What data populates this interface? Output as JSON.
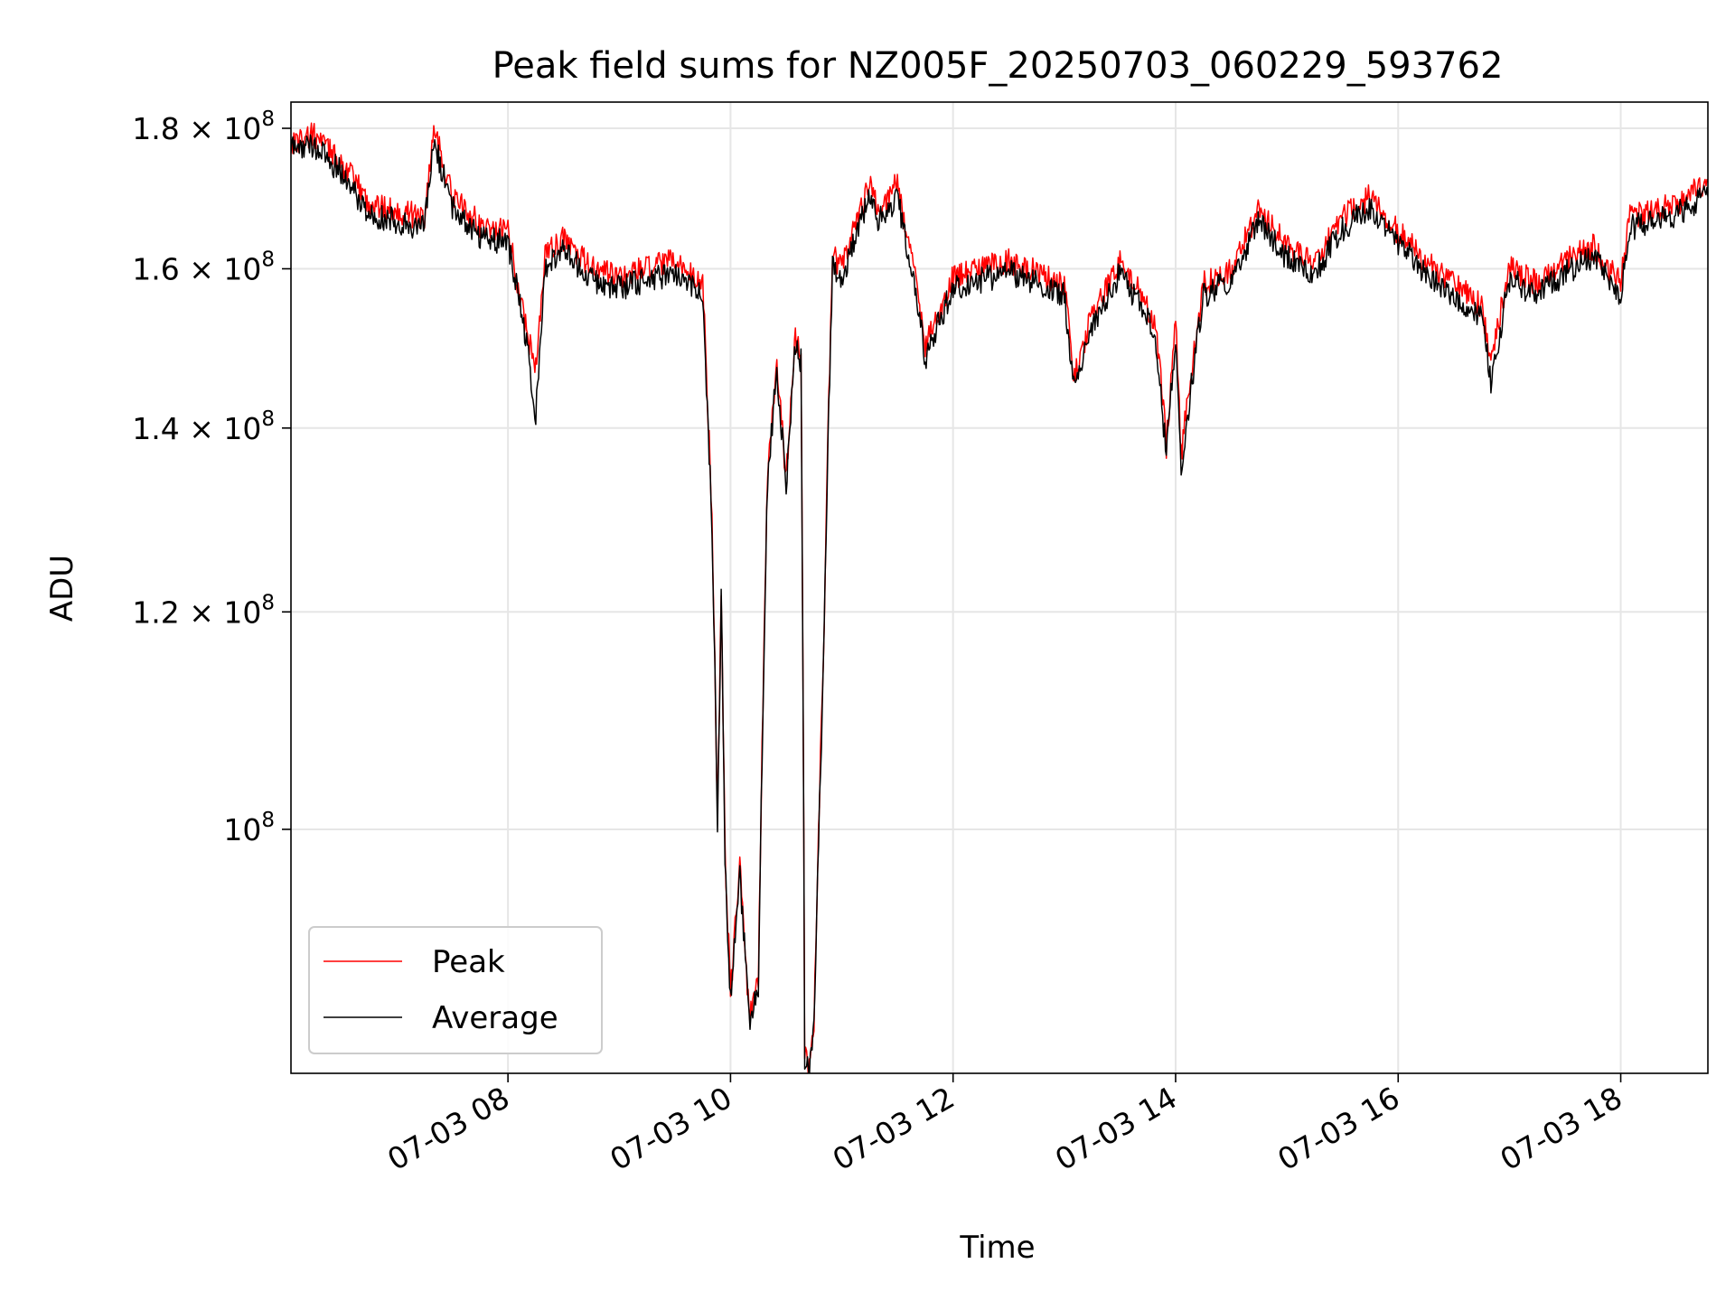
{
  "chart_data": {
    "type": "line",
    "title": "Peak field sums for NZ005F_20250703_060229_593762",
    "xlabel": "Time",
    "ylabel": "ADU",
    "yscale": "log",
    "xlim": [
      "07-03 06:03",
      "07-03 18:47"
    ],
    "ylim": [
      81500000,
      184000000
    ],
    "grid": true,
    "legend_position": "lower-left",
    "x_ticks": [
      "07-03 08",
      "07-03 10",
      "07-03 12",
      "07-03 14",
      "07-03 16",
      "07-03 18"
    ],
    "y_ticks": [
      {
        "value": 100000000,
        "mantissa": "",
        "exponent": "8"
      },
      {
        "value": 120000000,
        "mantissa": "1.2",
        "exponent": "8"
      },
      {
        "value": 140000000,
        "mantissa": "1.4",
        "exponent": "8"
      },
      {
        "value": 160000000,
        "mantissa": "1.6",
        "exponent": "8"
      },
      {
        "value": 180000000,
        "mantissa": "1.8",
        "exponent": "8"
      }
    ],
    "series": [
      {
        "name": "Peak",
        "color": "#ff0000",
        "x": [
          "07-03 06:03",
          "07-03 06:15",
          "07-03 06:30",
          "07-03 06:45",
          "07-03 07:00",
          "07-03 07:15",
          "07-03 07:20",
          "07-03 07:30",
          "07-03 07:45",
          "07-03 08:00",
          "07-03 08:10",
          "07-03 08:15",
          "07-03 08:20",
          "07-03 08:30",
          "07-03 08:45",
          "07-03 09:00",
          "07-03 09:15",
          "07-03 09:30",
          "07-03 09:45",
          "07-03 09:50",
          "07-03 09:53",
          "07-03 09:55",
          "07-03 09:57",
          "07-03 10:00",
          "07-03 10:05",
          "07-03 10:10",
          "07-03 10:15",
          "07-03 10:20",
          "07-03 10:25",
          "07-03 10:30",
          "07-03 10:35",
          "07-03 10:38",
          "07-03 10:40",
          "07-03 10:42",
          "07-03 10:45",
          "07-03 10:50",
          "07-03 10:55",
          "07-03 11:00",
          "07-03 11:15",
          "07-03 11:20",
          "07-03 11:30",
          "07-03 11:40",
          "07-03 11:45",
          "07-03 12:00",
          "07-03 12:30",
          "07-03 13:00",
          "07-03 13:05",
          "07-03 13:15",
          "07-03 13:30",
          "07-03 13:45",
          "07-03 13:50",
          "07-03 13:55",
          "07-03 14:00",
          "07-03 14:03",
          "07-03 14:15",
          "07-03 14:30",
          "07-03 14:45",
          "07-03 15:00",
          "07-03 15:15",
          "07-03 15:30",
          "07-03 15:45",
          "07-03 16:00",
          "07-03 16:15",
          "07-03 16:30",
          "07-03 16:45",
          "07-03 16:50",
          "07-03 17:00",
          "07-03 17:15",
          "07-03 17:30",
          "07-03 17:45",
          "07-03 18:00",
          "07-03 18:05",
          "07-03 18:15",
          "07-03 18:30",
          "07-03 18:47"
        ],
        "y": [
          178000000,
          179000000,
          175000000,
          169000000,
          168000000,
          167000000,
          180000000,
          170000000,
          166000000,
          165000000,
          152000000,
          147000000,
          162000000,
          164000000,
          160000000,
          159000000,
          160000000,
          161000000,
          158000000,
          130000000,
          101000000,
          122000000,
          98000000,
          87000000,
          97000000,
          85500000,
          88000000,
          135000000,
          148000000,
          134000000,
          151000000,
          149000000,
          83000000,
          81500000,
          85000000,
          115000000,
          162000000,
          160000000,
          172000000,
          168000000,
          172000000,
          158000000,
          150000000,
          159000000,
          161000000,
          158000000,
          146000000,
          154000000,
          161000000,
          155000000,
          151000000,
          138000000,
          153000000,
          137000000,
          158000000,
          160000000,
          168000000,
          163000000,
          161000000,
          167000000,
          170000000,
          165000000,
          161000000,
          158000000,
          155000000,
          148000000,
          160000000,
          158000000,
          161000000,
          163000000,
          158000000,
          167000000,
          168000000,
          169000000,
          172000000
        ]
      },
      {
        "name": "Average",
        "color": "#000000",
        "x": [
          "07-03 06:03",
          "07-03 06:15",
          "07-03 06:30",
          "07-03 06:45",
          "07-03 07:00",
          "07-03 07:15",
          "07-03 07:20",
          "07-03 07:30",
          "07-03 07:45",
          "07-03 08:00",
          "07-03 08:10",
          "07-03 08:15",
          "07-03 08:20",
          "07-03 08:30",
          "07-03 08:45",
          "07-03 09:00",
          "07-03 09:15",
          "07-03 09:30",
          "07-03 09:45",
          "07-03 09:50",
          "07-03 09:53",
          "07-03 09:55",
          "07-03 09:57",
          "07-03 10:00",
          "07-03 10:05",
          "07-03 10:10",
          "07-03 10:15",
          "07-03 10:20",
          "07-03 10:25",
          "07-03 10:30",
          "07-03 10:35",
          "07-03 10:38",
          "07-03 10:40",
          "07-03 10:42",
          "07-03 10:45",
          "07-03 10:50",
          "07-03 10:55",
          "07-03 11:00",
          "07-03 11:15",
          "07-03 11:20",
          "07-03 11:30",
          "07-03 11:40",
          "07-03 11:45",
          "07-03 12:00",
          "07-03 12:30",
          "07-03 13:00",
          "07-03 13:05",
          "07-03 13:15",
          "07-03 13:30",
          "07-03 13:45",
          "07-03 13:50",
          "07-03 13:55",
          "07-03 14:00",
          "07-03 14:03",
          "07-03 14:15",
          "07-03 14:30",
          "07-03 14:45",
          "07-03 15:00",
          "07-03 15:15",
          "07-03 15:30",
          "07-03 15:45",
          "07-03 16:00",
          "07-03 16:15",
          "07-03 16:30",
          "07-03 16:45",
          "07-03 16:50",
          "07-03 17:00",
          "07-03 17:15",
          "07-03 17:30",
          "07-03 17:45",
          "07-03 18:00",
          "07-03 18:05",
          "07-03 18:15",
          "07-03 18:30",
          "07-03 18:47"
        ],
        "y": [
          177000000,
          177500000,
          173500000,
          167500000,
          166500000,
          165500000,
          178000000,
          168500000,
          164500000,
          163500000,
          150500000,
          141000000,
          160500000,
          162500000,
          158500000,
          157500000,
          158500000,
          159500000,
          156500000,
          129000000,
          100500000,
          121000000,
          97500000,
          86500000,
          96500000,
          85000000,
          87500000,
          134000000,
          147000000,
          133000000,
          150000000,
          148000000,
          82500000,
          81500000,
          84500000,
          114000000,
          160500000,
          158500000,
          170500000,
          166500000,
          170000000,
          156500000,
          148500000,
          157500000,
          159500000,
          156500000,
          145000000,
          152500000,
          159500000,
          153500000,
          149500000,
          136500000,
          151500000,
          135500000,
          156500000,
          158500000,
          166500000,
          161500000,
          159500000,
          165500000,
          168500000,
          163500000,
          159500000,
          156500000,
          153500000,
          145500000,
          158500000,
          156500000,
          159500000,
          161500000,
          156500000,
          165500000,
          166500000,
          167500000,
          170000000
        ]
      }
    ]
  }
}
